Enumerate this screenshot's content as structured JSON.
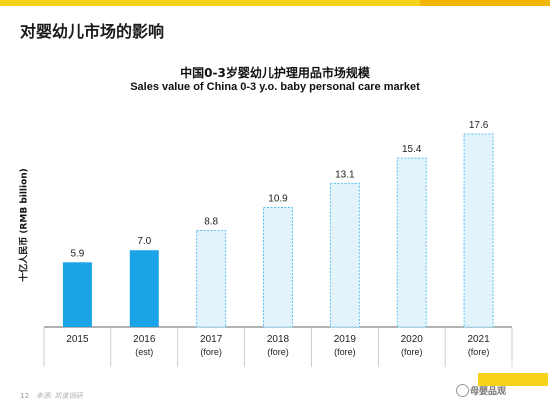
{
  "slide": {
    "title": "对婴幼儿市场的影响",
    "page_number": "12",
    "source": "来源: 凯度调研",
    "watermark": "母婴品观"
  },
  "colors": {
    "actual_fill": "#1aa3e6",
    "forecast_fill": "#e3f3fc",
    "forecast_stroke": "#5bc0ef",
    "axis": "#666666",
    "brand_yellow": "#f6d21a"
  },
  "chart_data": {
    "type": "bar",
    "title": "中国0-3岁婴幼儿护理用品市场规模",
    "subtitle": "Sales value of China 0-3 y.o. baby personal care market",
    "ylabel": "十亿人民币 (RMB billion)",
    "xlabel": "",
    "categories": [
      {
        "year": "2015",
        "note": ""
      },
      {
        "year": "2016",
        "note": "(est)"
      },
      {
        "year": "2017",
        "note": "(fore)"
      },
      {
        "year": "2018",
        "note": "(fore)"
      },
      {
        "year": "2019",
        "note": "(fore)"
      },
      {
        "year": "2020",
        "note": "(fore)"
      },
      {
        "year": "2021",
        "note": "(fore)"
      }
    ],
    "values": [
      5.9,
      7.0,
      8.8,
      10.9,
      13.1,
      15.4,
      17.6
    ],
    "value_labels": [
      "5.9",
      "7.0",
      "8.8",
      "10.9",
      "13.1",
      "15.4",
      "17.6"
    ],
    "forecast": [
      false,
      false,
      true,
      true,
      true,
      true,
      true
    ],
    "ylim": [
      0,
      17.6
    ],
    "grid": false,
    "legend": "none"
  }
}
